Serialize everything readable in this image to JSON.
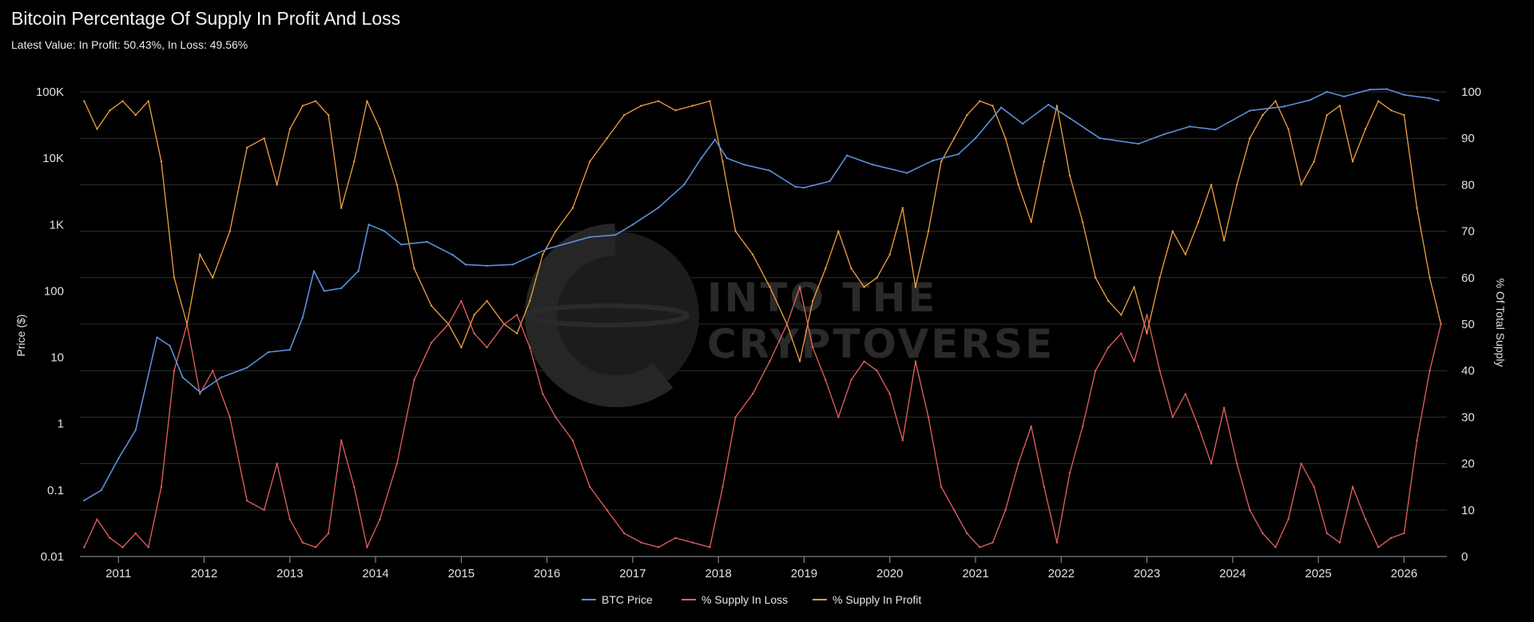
{
  "chart_data": {
    "type": "line",
    "title": "Bitcoin Percentage Of Supply In Profit And Loss",
    "subtitle": "Latest Value: In Profit: 50.43%, In Loss: 49.56%",
    "ylabel_left": "Price ($)",
    "ylabel_right": "% Of Total Supply",
    "left_axis": {
      "scale": "log",
      "range": [
        0.01,
        100000
      ],
      "ticks": [
        {
          "v": 0.01,
          "l": "0.01"
        },
        {
          "v": 0.1,
          "l": "0.1"
        },
        {
          "v": 1,
          "l": "1"
        },
        {
          "v": 10,
          "l": "10"
        },
        {
          "v": 100,
          "l": "100"
        },
        {
          "v": 1000,
          "l": "1K"
        },
        {
          "v": 10000,
          "l": "10K"
        },
        {
          "v": 100000,
          "l": "100K"
        }
      ]
    },
    "right_axis": {
      "scale": "linear",
      "range": [
        0,
        100
      ],
      "ticks": [
        0,
        10,
        20,
        30,
        40,
        50,
        60,
        70,
        80,
        90,
        100
      ]
    },
    "x_axis": {
      "range": [
        2010.55,
        2026.5
      ],
      "ticks": [
        2011,
        2012,
        2013,
        2014,
        2015,
        2016,
        2017,
        2018,
        2019,
        2020,
        2021,
        2022,
        2023,
        2024,
        2025,
        2026
      ]
    },
    "grid": "horizontal",
    "legend_placement": "bottom-center",
    "watermark": "INTO THE CRYPTOVERSE",
    "series": [
      {
        "name": "BTC Price",
        "color": "#5b8fd9",
        "axis": "left",
        "x": [
          2010.6,
          2010.8,
          2011.0,
          2011.2,
          2011.45,
          2011.6,
          2011.75,
          2011.95,
          2012.2,
          2012.5,
          2012.75,
          2013.0,
          2013.15,
          2013.28,
          2013.4,
          2013.6,
          2013.8,
          2013.92,
          2014.1,
          2014.3,
          2014.6,
          2014.9,
          2015.05,
          2015.3,
          2015.6,
          2015.85,
          2016.0,
          2016.5,
          2016.8,
          2017.0,
          2017.3,
          2017.6,
          2017.8,
          2017.96,
          2018.1,
          2018.3,
          2018.6,
          2018.9,
          2019.0,
          2019.3,
          2019.5,
          2019.8,
          2020.2,
          2020.5,
          2020.8,
          2021.0,
          2021.3,
          2021.55,
          2021.85,
          2022.1,
          2022.45,
          2022.9,
          2023.2,
          2023.5,
          2023.8,
          2024.2,
          2024.6,
          2024.9,
          2025.1,
          2025.3,
          2025.6,
          2025.8,
          2026.0,
          2026.3,
          2026.4
        ],
        "y": [
          0.07,
          0.1,
          0.3,
          0.8,
          20,
          15,
          5,
          3,
          5,
          7,
          12,
          13,
          40,
          200,
          100,
          110,
          200,
          1000,
          800,
          500,
          550,
          350,
          250,
          240,
          250,
          350,
          430,
          650,
          700,
          1000,
          1800,
          4000,
          10000,
          19000,
          10000,
          8000,
          6500,
          3700,
          3600,
          4500,
          11000,
          8000,
          6000,
          9200,
          11500,
          20000,
          58000,
          33000,
          64000,
          40000,
          20000,
          16500,
          23000,
          30000,
          27000,
          52000,
          60000,
          75000,
          100000,
          85000,
          108000,
          110000,
          90000,
          80000,
          74000
        ]
      },
      {
        "name": "% Supply In Loss",
        "color": "#e86060",
        "axis": "right",
        "x": [
          2010.6,
          2010.75,
          2010.9,
          2011.05,
          2011.2,
          2011.35,
          2011.5,
          2011.65,
          2011.8,
          2011.95,
          2012.1,
          2012.3,
          2012.5,
          2012.7,
          2012.85,
          2013.0,
          2013.15,
          2013.3,
          2013.45,
          2013.6,
          2013.75,
          2013.9,
          2014.05,
          2014.25,
          2014.45,
          2014.65,
          2014.85,
          2015.0,
          2015.15,
          2015.3,
          2015.5,
          2015.65,
          2015.8,
          2015.95,
          2016.1,
          2016.3,
          2016.5,
          2016.7,
          2016.9,
          2017.1,
          2017.3,
          2017.5,
          2017.7,
          2017.9,
          2018.05,
          2018.2,
          2018.4,
          2018.6,
          2018.8,
          2018.95,
          2019.1,
          2019.25,
          2019.4,
          2019.55,
          2019.7,
          2019.85,
          2020.0,
          2020.15,
          2020.3,
          2020.45,
          2020.6,
          2020.75,
          2020.9,
          2021.05,
          2021.2,
          2021.35,
          2021.5,
          2021.65,
          2021.8,
          2021.95,
          2022.1,
          2022.25,
          2022.4,
          2022.55,
          2022.7,
          2022.85,
          2023.0,
          2023.15,
          2023.3,
          2023.45,
          2023.6,
          2023.75,
          2023.9,
          2024.05,
          2024.2,
          2024.35,
          2024.5,
          2024.65,
          2024.8,
          2024.95,
          2025.1,
          2025.25,
          2025.4,
          2025.55,
          2025.7,
          2025.85,
          2026.0,
          2026.15,
          2026.3,
          2026.43
        ],
        "y": [
          2,
          8,
          4,
          2,
          5,
          2,
          15,
          40,
          50,
          35,
          40,
          30,
          12,
          10,
          20,
          8,
          3,
          2,
          5,
          25,
          15,
          2,
          8,
          20,
          38,
          46,
          50,
          55,
          48,
          45,
          50,
          52,
          45,
          35,
          30,
          25,
          15,
          10,
          5,
          3,
          2,
          4,
          3,
          2,
          15,
          30,
          35,
          42,
          50,
          58,
          45,
          38,
          30,
          38,
          42,
          40,
          35,
          25,
          42,
          30,
          15,
          10,
          5,
          2,
          3,
          10,
          20,
          28,
          15,
          3,
          18,
          28,
          40,
          45,
          48,
          42,
          52,
          40,
          30,
          35,
          28,
          20,
          32,
          20,
          10,
          5,
          2,
          8,
          20,
          15,
          5,
          3,
          15,
          8,
          2,
          4,
          5,
          25,
          40,
          50
        ]
      },
      {
        "name": "% Supply In Profit",
        "color": "#f0a040",
        "axis": "right",
        "x": [
          2010.6,
          2010.75,
          2010.9,
          2011.05,
          2011.2,
          2011.35,
          2011.5,
          2011.65,
          2011.8,
          2011.95,
          2012.1,
          2012.3,
          2012.5,
          2012.7,
          2012.85,
          2013.0,
          2013.15,
          2013.3,
          2013.45,
          2013.6,
          2013.75,
          2013.9,
          2014.05,
          2014.25,
          2014.45,
          2014.65,
          2014.85,
          2015.0,
          2015.15,
          2015.3,
          2015.5,
          2015.65,
          2015.8,
          2015.95,
          2016.1,
          2016.3,
          2016.5,
          2016.7,
          2016.9,
          2017.1,
          2017.3,
          2017.5,
          2017.7,
          2017.9,
          2018.05,
          2018.2,
          2018.4,
          2018.6,
          2018.8,
          2018.95,
          2019.1,
          2019.25,
          2019.4,
          2019.55,
          2019.7,
          2019.85,
          2020.0,
          2020.15,
          2020.3,
          2020.45,
          2020.6,
          2020.75,
          2020.9,
          2021.05,
          2021.2,
          2021.35,
          2021.5,
          2021.65,
          2021.8,
          2021.95,
          2022.1,
          2022.25,
          2022.4,
          2022.55,
          2022.7,
          2022.85,
          2023.0,
          2023.15,
          2023.3,
          2023.45,
          2023.6,
          2023.75,
          2023.9,
          2024.05,
          2024.2,
          2024.35,
          2024.5,
          2024.65,
          2024.8,
          2024.95,
          2025.1,
          2025.25,
          2025.4,
          2025.55,
          2025.7,
          2025.85,
          2026.0,
          2026.15,
          2026.3,
          2026.43
        ],
        "y": [
          98,
          92,
          96,
          98,
          95,
          98,
          85,
          60,
          50,
          65,
          60,
          70,
          88,
          90,
          80,
          92,
          97,
          98,
          95,
          75,
          85,
          98,
          92,
          80,
          62,
          54,
          50,
          45,
          52,
          55,
          50,
          48,
          55,
          65,
          70,
          75,
          85,
          90,
          95,
          97,
          98,
          96,
          97,
          98,
          85,
          70,
          65,
          58,
          50,
          42,
          55,
          62,
          70,
          62,
          58,
          60,
          65,
          75,
          58,
          70,
          85,
          90,
          95,
          98,
          97,
          90,
          80,
          72,
          85,
          97,
          82,
          72,
          60,
          55,
          52,
          58,
          48,
          60,
          70,
          65,
          72,
          80,
          68,
          80,
          90,
          95,
          98,
          92,
          80,
          85,
          95,
          97,
          85,
          92,
          98,
          96,
          95,
          75,
          60,
          50
        ]
      }
    ]
  },
  "legend": {
    "items": [
      "BTC Price",
      "% Supply In Loss",
      "% Supply In Profit"
    ]
  }
}
